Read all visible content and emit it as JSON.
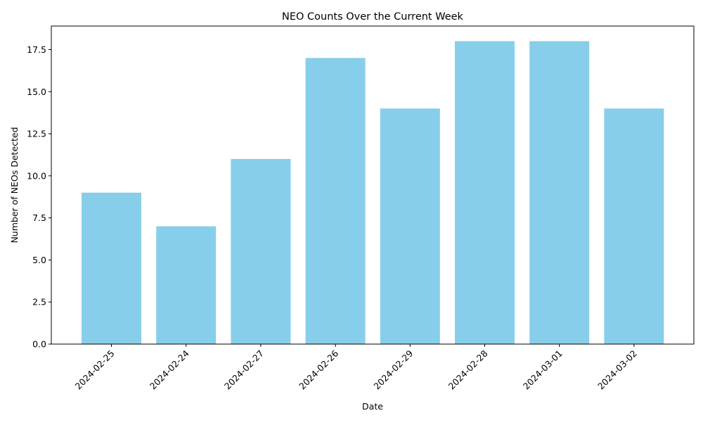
{
  "chart_data": {
    "type": "bar",
    "title": "NEO Counts Over the Current Week",
    "xlabel": "Date",
    "ylabel": "Number of NEOs Detected",
    "categories": [
      "2024-02-25",
      "2024-02-24",
      "2024-02-27",
      "2024-02-26",
      "2024-02-29",
      "2024-02-28",
      "2024-03-01",
      "2024-03-02"
    ],
    "values": [
      9,
      7,
      11,
      17,
      14,
      18,
      18,
      14
    ],
    "ylim": [
      0,
      18.9
    ],
    "yticks": [
      "0.0",
      "2.5",
      "5.0",
      "7.5",
      "10.0",
      "12.5",
      "15.0",
      "17.5"
    ],
    "bar_color": "#87ceeb",
    "grid": false,
    "legend": "none"
  }
}
